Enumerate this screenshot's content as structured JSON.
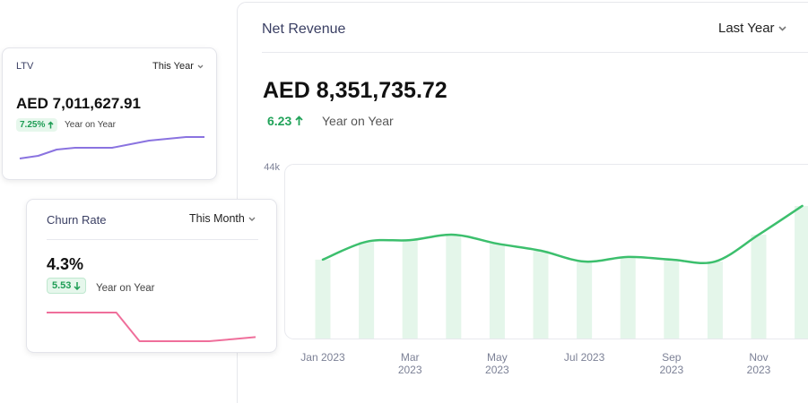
{
  "chart_data": [
    {
      "type": "bar_line",
      "title": "Net Revenue",
      "period": "Last Year",
      "value": "AED 8,351,735.72",
      "change": "6.23",
      "comparison": "Year on Year",
      "categories": [
        "Jan 2023",
        null,
        "Mar 2023",
        null,
        "May 2023",
        null,
        "Jul 2023",
        null,
        "Sep 2023",
        null,
        "Nov 2023",
        null
      ],
      "values": [
        20300,
        24900,
        25300,
        26700,
        24400,
        22600,
        19800,
        21000,
        20300,
        19800,
        26700,
        34100
      ],
      "color": "#3cbf6d",
      "bar_color": "#e4f6ea",
      "ylim": [
        0,
        44000
      ],
      "yticks": [
        {
          "value": 44000,
          "label": "44k"
        }
      ]
    },
    {
      "type": "line",
      "title": "LTV",
      "period": "This Year",
      "value": "AED 7,011,627.91",
      "change": "7.25%",
      "comparison": "Year on Year",
      "values": [
        23,
        26,
        33,
        35,
        35,
        35,
        39,
        43,
        45,
        47,
        47
      ],
      "color": "#8a73e0"
    },
    {
      "type": "line",
      "title": "Churn Rate",
      "period": "This Month",
      "value": "4.3%",
      "change": "5.53",
      "comparison": "Year on Year",
      "values": [
        5.5,
        5.5,
        5.5,
        5.5,
        4.1,
        4.1,
        4.1,
        4.1,
        4.2,
        4.3
      ],
      "color": "#ef6f9b"
    }
  ]
}
